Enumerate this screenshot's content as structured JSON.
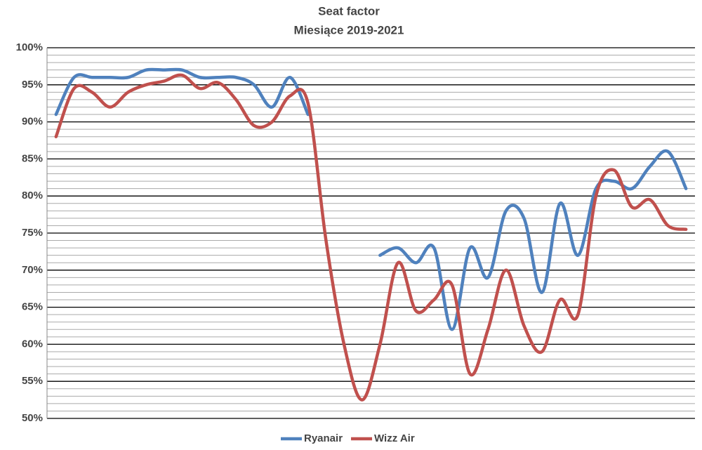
{
  "chart_data": {
    "type": "line",
    "title": "Seat factor",
    "subtitle": "Miesiące 2019-2021",
    "categories": [
      null,
      null,
      null,
      null,
      null,
      null,
      null,
      null,
      null,
      null,
      null,
      null,
      null,
      null,
      null,
      null,
      null,
      null,
      null,
      null,
      null,
      null,
      null,
      null,
      null,
      null,
      null,
      null,
      null,
      null,
      null,
      null,
      null,
      null,
      null,
      null
    ],
    "series": [
      {
        "name": "Ryanair",
        "color": "#4f81bd",
        "values": [
          91,
          96,
          96,
          96,
          96,
          97,
          97,
          97,
          96,
          96,
          96,
          95,
          92,
          96,
          91,
          null,
          null,
          null,
          72,
          73,
          71,
          73,
          62,
          73,
          69,
          78,
          77,
          67,
          79,
          72,
          81,
          82,
          81,
          84,
          86,
          81
        ]
      },
      {
        "name": "Wizz Air",
        "color": "#c0504d",
        "values": [
          88,
          94.5,
          94,
          92,
          94,
          95,
          95.5,
          96.3,
          94.5,
          95.3,
          93,
          89.5,
          90,
          93.5,
          92.5,
          74,
          60,
          52.5,
          60,
          71,
          64.5,
          66,
          68,
          56,
          62,
          70,
          62.5,
          59,
          66,
          64,
          80,
          83.5,
          78.5,
          79.5,
          76,
          75.5
        ]
      }
    ],
    "ylim": [
      50,
      100
    ],
    "yticks": [
      {
        "value": 50,
        "label": "50%"
      },
      {
        "value": 55,
        "label": "55%"
      },
      {
        "value": 60,
        "label": "60%"
      },
      {
        "value": 65,
        "label": "65%"
      },
      {
        "value": 70,
        "label": "70%"
      },
      {
        "value": 75,
        "label": "75%"
      },
      {
        "value": 80,
        "label": "80%"
      },
      {
        "value": 85,
        "label": "85%"
      },
      {
        "value": 90,
        "label": "90%"
      },
      {
        "value": 95,
        "label": "95%"
      },
      {
        "value": 100,
        "label": "100%"
      }
    ],
    "grid": true,
    "legend": "bottom"
  }
}
